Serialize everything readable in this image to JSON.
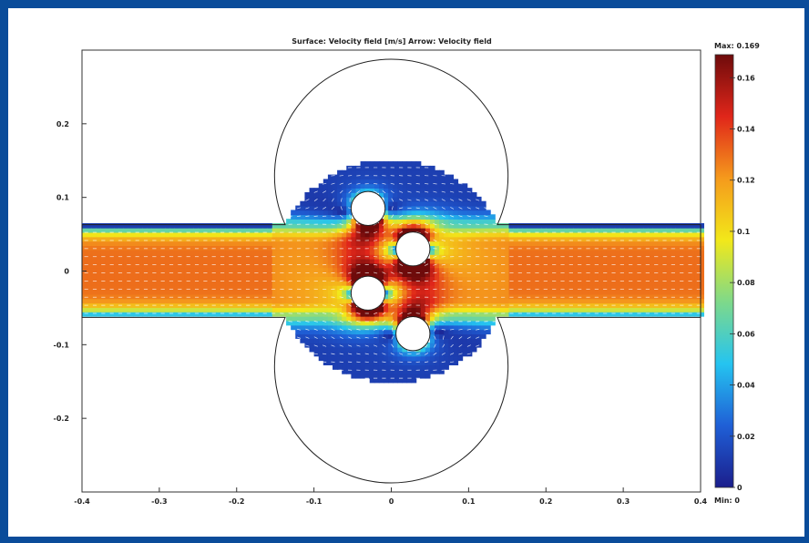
{
  "chart_data": {
    "type": "heatmap",
    "title": "Surface: Velocity field [m/s]   Arrow: Velocity field",
    "xlim": [
      -0.4,
      0.4
    ],
    "ylim": [
      -0.3,
      0.3
    ],
    "x_ticks": [
      -0.4,
      -0.3,
      -0.2,
      -0.1,
      0,
      0.1,
      0.2,
      0.3,
      0.4
    ],
    "x_tick_labels": [
      "-0.4",
      "-0.3",
      "-0.2",
      "-0.1",
      "0",
      "0.1",
      "0.2",
      "0.3",
      "0.4"
    ],
    "y_ticks": [
      0.2,
      0.1,
      0,
      -0.1,
      -0.2
    ],
    "y_tick_labels": [
      "0.2",
      "0.1",
      "0",
      "-0.1",
      "-0.2"
    ],
    "colorbar": {
      "max_label": "Max: 0.169",
      "min_label": "Min: 0",
      "range": [
        0,
        0.169
      ],
      "ticks": [
        0.16,
        0.14,
        0.12,
        0.1,
        0.08,
        0.06,
        0.04,
        0.02,
        0
      ],
      "tick_labels": [
        "0.16",
        "0.14",
        "0.12",
        "0.1",
        "0.08",
        "0.06",
        "0.04",
        "0.02",
        "0"
      ],
      "colormap": [
        "#1b1e8c",
        "#1f5fd6",
        "#25c4f0",
        "#7ed98a",
        "#f2e81a",
        "#f59a1c",
        "#e0261a",
        "#6e0b0b"
      ]
    },
    "geometry": {
      "channel_y": [
        -0.063,
        0.063
      ],
      "chamber_center": [
        0,
        0
      ],
      "chamber_radius": 0.151,
      "obstacle_radius": 0.022,
      "obstacles": [
        {
          "x": -0.03,
          "y": 0.085
        },
        {
          "x": 0.028,
          "y": 0.03
        },
        {
          "x": -0.03,
          "y": -0.03
        },
        {
          "x": 0.028,
          "y": -0.085
        }
      ]
    },
    "inlet_velocity": 0.13
  }
}
